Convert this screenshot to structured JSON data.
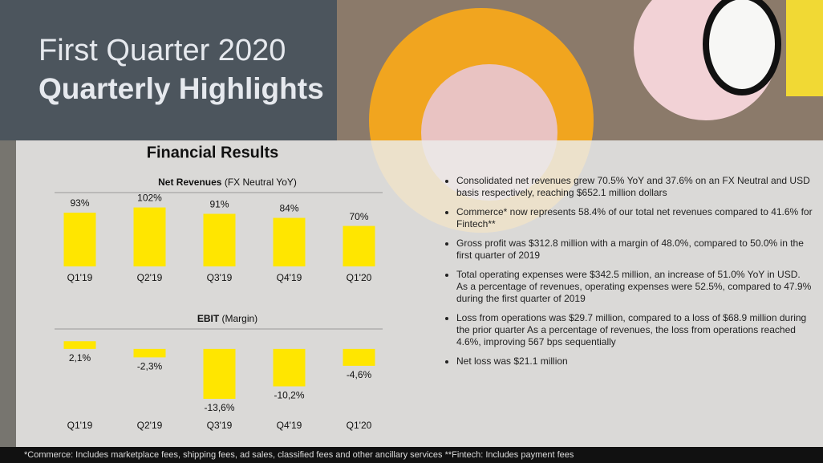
{
  "header": {
    "line1": "First Quarter 2020",
    "line2": "Quarterly Highlights"
  },
  "section_title": "Financial Results",
  "chart_data": [
    {
      "type": "bar",
      "title": "Net Revenues",
      "subtitle": "(FX Neutral YoY)",
      "categories": [
        "Q1'19",
        "Q2'19",
        "Q3'19",
        "Q4'19",
        "Q1'20"
      ],
      "values": [
        93,
        102,
        91,
        84,
        70
      ],
      "value_labels": [
        "93%",
        "102%",
        "91%",
        "84%",
        "70%"
      ],
      "color": "#ffe600",
      "ylim": [
        0,
        125
      ]
    },
    {
      "type": "bar",
      "title": "EBIT",
      "subtitle": "(Margin)",
      "categories": [
        "Q1'19",
        "Q2'19",
        "Q3'19",
        "Q4'19",
        "Q1'20"
      ],
      "values": [
        2.1,
        -2.3,
        -13.6,
        -10.2,
        -4.6
      ],
      "value_labels": [
        "2,1%",
        "-2,3%",
        "-13,6%",
        "-10,2%",
        "-4,6%"
      ],
      "color": "#ffe600",
      "ylim": [
        -16,
        5
      ]
    }
  ],
  "bullets": [
    "Consolidated net revenues grew 70.5% YoY and 37.6% on an FX Neutral and USD basis respectively, reaching $652.1 million dollars",
    "Commerce* now represents 58.4% of our total net revenues compared to 41.6% for Fintech**",
    "Gross profit was $312.8 million with a margin of 48.0%, compared to 50.0% in the first quarter of 2019",
    "Total operating expenses were $342.5 million, an increase of 51.0% YoY in USD. As a percentage of revenues, operating expenses were 52.5%, compared to 47.9% during the first quarter of 2019",
    "Loss from operations was $29.7 million, compared to a loss of $68.9 million during the prior quarter As a percentage of revenues, the loss from operations reached 4.6%, improving 567 bps sequentially",
    "Net loss was $21.1 million"
  ],
  "footnote": "*Commerce: Includes marketplace fees, shipping fees, ad sales, classified fees and other ancillary services **Fintech: Includes payment fees"
}
